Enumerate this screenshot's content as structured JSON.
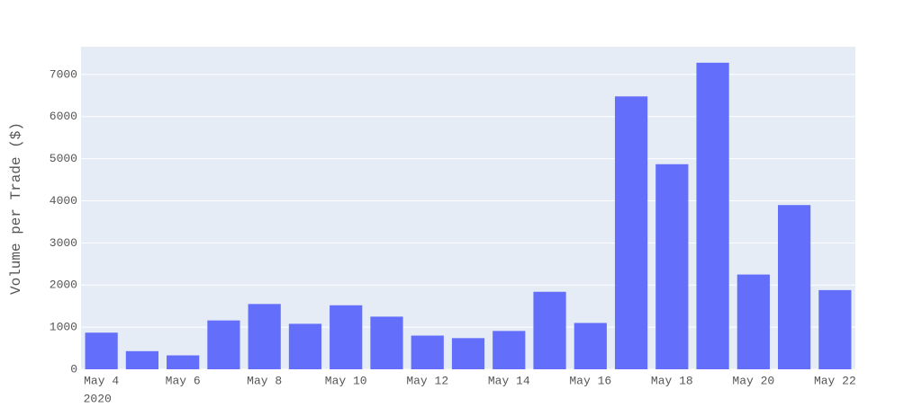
{
  "chart_data": {
    "type": "bar",
    "y_axis_label": "Volume per Trade ($)",
    "x": [
      "2020-05-04",
      "2020-05-05",
      "2020-05-06",
      "2020-05-07",
      "2020-05-08",
      "2020-05-09",
      "2020-05-10",
      "2020-05-11",
      "2020-05-12",
      "2020-05-13",
      "2020-05-14",
      "2020-05-15",
      "2020-05-16",
      "2020-05-17",
      "2020-05-18",
      "2020-05-19",
      "2020-05-20",
      "2020-05-21",
      "2020-05-22"
    ],
    "values": [
      870,
      430,
      330,
      1160,
      1550,
      1080,
      1520,
      1250,
      800,
      740,
      910,
      1840,
      1100,
      6480,
      4870,
      7280,
      2250,
      3900,
      1880
    ],
    "color": "#636efa",
    "xlim": [
      "2020-05-03T12:00:00Z",
      "2020-05-22T12:00:00Z"
    ],
    "xticks": [
      {
        "value": "2020-05-04",
        "label": "May 4"
      },
      {
        "value": "2020-05-06",
        "label": "May 6"
      },
      {
        "value": "2020-05-08",
        "label": "May 8"
      },
      {
        "value": "2020-05-10",
        "label": "May 10"
      },
      {
        "value": "2020-05-12",
        "label": "May 12"
      },
      {
        "value": "2020-05-14",
        "label": "May 14"
      },
      {
        "value": "2020-05-16",
        "label": "May 16"
      },
      {
        "value": "2020-05-18",
        "label": "May 18"
      },
      {
        "value": "2020-05-20",
        "label": "May 20"
      },
      {
        "value": "2020-05-22",
        "label": "May 22"
      }
    ],
    "x_year_label": "2020",
    "ylim": [
      0,
      7660
    ],
    "yticks": [
      0,
      1000,
      2000,
      3000,
      4000,
      5000,
      6000,
      7000
    ],
    "grid": true
  }
}
